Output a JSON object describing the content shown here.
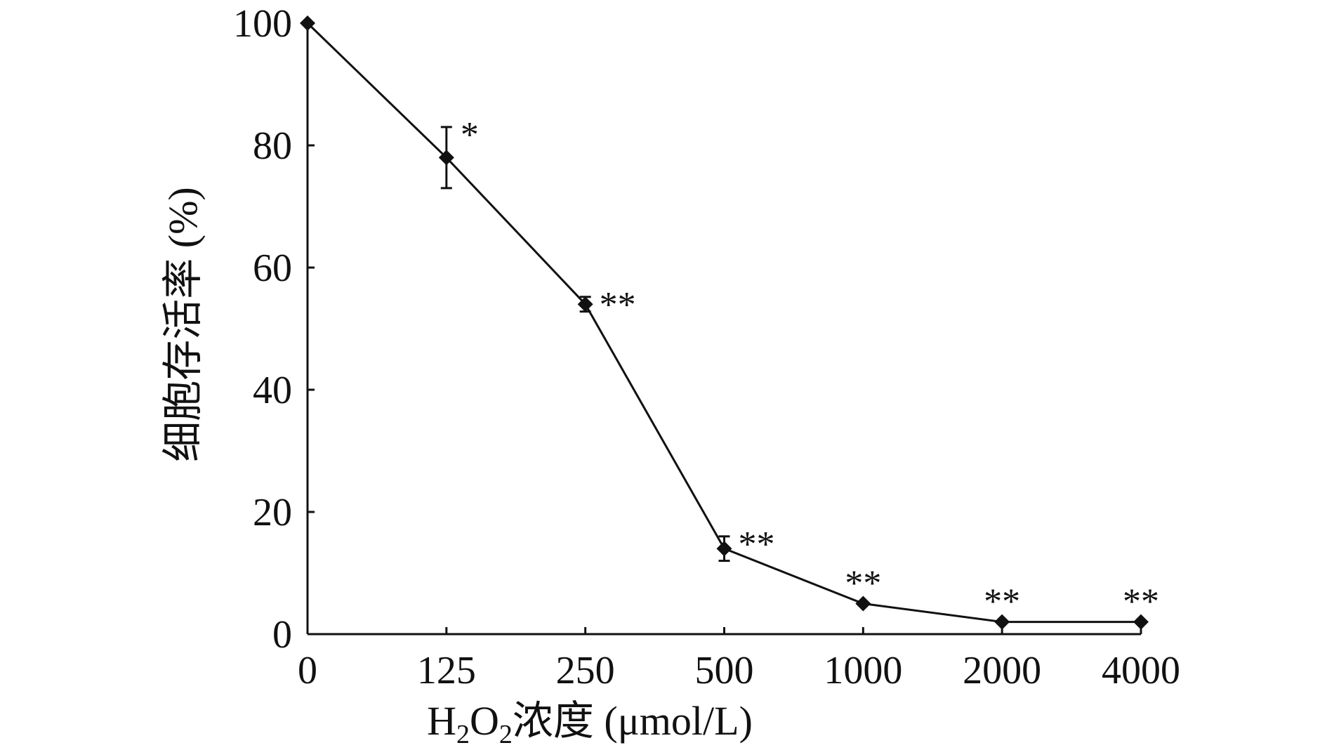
{
  "chart_data": {
    "type": "line",
    "title": "",
    "xlabel": {
      "prefix": "H",
      "sub1": "2",
      "mid": "O",
      "sub2": "2",
      "suffix": "浓度 (μmol/L)"
    },
    "ylabel": "细胞存活率 (%)",
    "categories": [
      "0",
      "125",
      "250",
      "500",
      "1000",
      "2000",
      "4000"
    ],
    "ylim": [
      0,
      100
    ],
    "yticks": [
      "0",
      "20",
      "40",
      "60",
      "80",
      "100"
    ],
    "grid": false,
    "legend": "none",
    "series": [
      {
        "values": [
          100,
          78,
          54,
          14,
          5,
          2,
          2
        ],
        "errors": [
          0,
          5,
          1.2,
          2,
          0,
          0,
          0
        ],
        "significance": [
          "",
          "*",
          "**",
          "**",
          "**",
          "**",
          "**"
        ],
        "color": "#111111",
        "marker": "diamond"
      }
    ]
  }
}
